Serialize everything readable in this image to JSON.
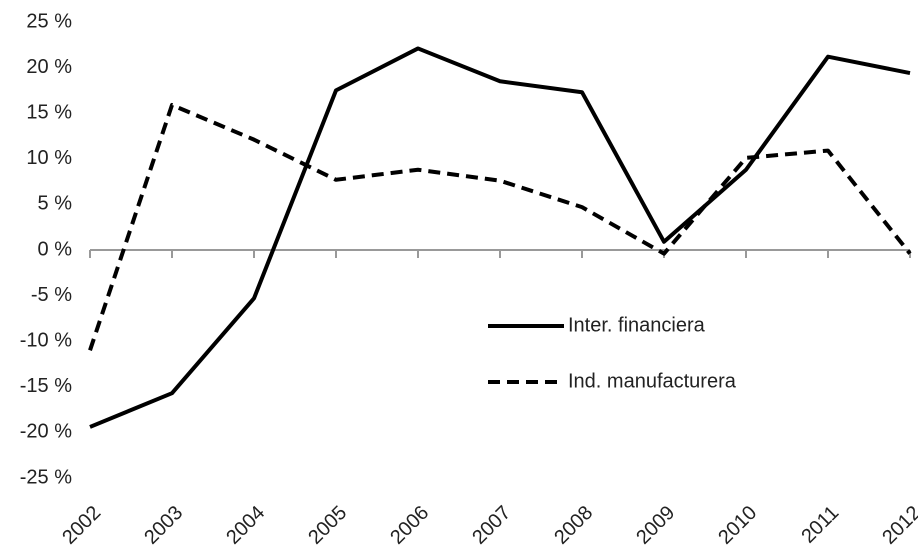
{
  "chart_data": {
    "type": "line",
    "categories": [
      "2002",
      "2003",
      "2004",
      "2005",
      "2006",
      "2007",
      "2008",
      "2009",
      "2010",
      "2011",
      "2012"
    ],
    "series": [
      {
        "name": "Inter. financiera",
        "color": "#000000",
        "dash": "solid",
        "values": [
          -19.4,
          -15.7,
          -5.3,
          17.5,
          22.1,
          18.5,
          17.3,
          0.9,
          8.8,
          21.2,
          19.4
        ]
      },
      {
        "name": "Ind. manufacturera",
        "color": "#000000",
        "dash": "dashed",
        "values": [
          -11,
          15.9,
          12.1,
          7.7,
          8.8,
          7.6,
          4.7,
          -0.4,
          10.1,
          10.9,
          -0.4
        ]
      }
    ],
    "ylim": [
      -25,
      25
    ],
    "yticks": [
      {
        "value": 25,
        "label": "25 %"
      },
      {
        "value": 20,
        "label": "20 %"
      },
      {
        "value": 15,
        "label": "15 %"
      },
      {
        "value": 10,
        "label": "10 %"
      },
      {
        "value": 5,
        "label": "5 %"
      },
      {
        "value": 0,
        "label": "0 %"
      },
      {
        "value": -5,
        "label": "-5 %"
      },
      {
        "value": -10,
        "label": "-10 %"
      },
      {
        "value": -15,
        "label": "-15 %"
      },
      {
        "value": -20,
        "label": "-20 %"
      },
      {
        "value": -25,
        "label": "-25 %"
      }
    ],
    "grid": false,
    "legend": "center-right"
  }
}
